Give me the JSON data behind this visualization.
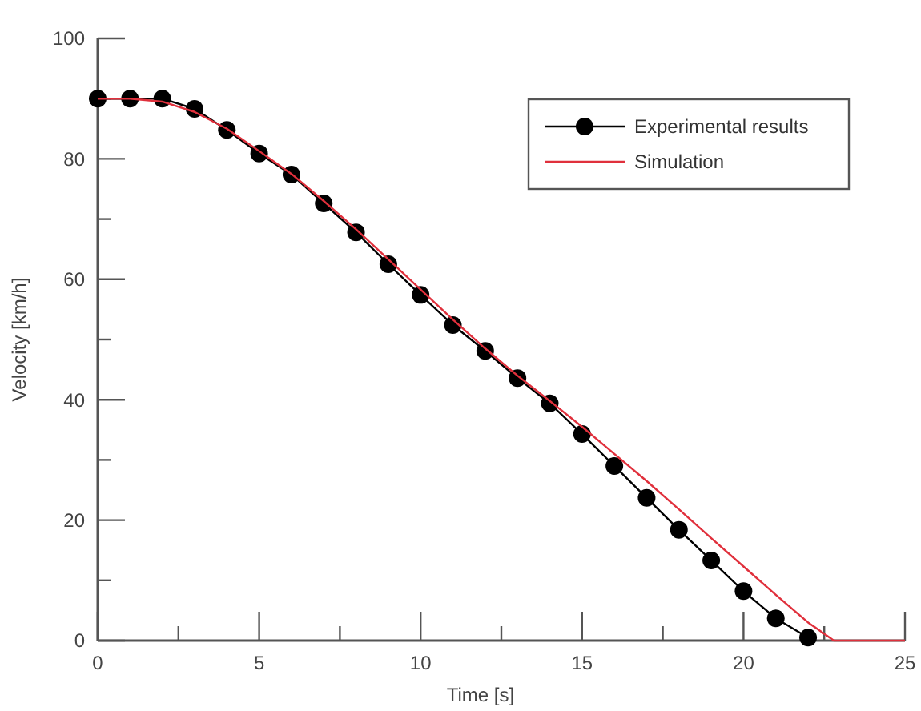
{
  "chart_data": {
    "type": "line",
    "xlabel": "Time [s]",
    "ylabel": "Velocity [km/h]",
    "xlim": [
      0,
      25
    ],
    "xticks": [
      0,
      {
        "value": 2.5,
        "label": null
      },
      5,
      {
        "value": 7.5,
        "label": null
      },
      10,
      {
        "value": 12.5,
        "label": null
      },
      15,
      {
        "value": 17.5,
        "label": null
      },
      20,
      {
        "value": 22.5,
        "label": null
      },
      25
    ],
    "ylim": [
      0,
      100
    ],
    "yticks": [
      0,
      {
        "value": 10,
        "label": null
      },
      20,
      {
        "value": 30,
        "label": null
      },
      40,
      {
        "value": 50,
        "label": null
      },
      60,
      {
        "value": 70,
        "label": null
      },
      80,
      {
        "value": 90,
        "label": null
      },
      100
    ],
    "grid": false,
    "legend": "top right",
    "series": [
      {
        "name": "Experimental results",
        "color": "#000000",
        "marker": "circle",
        "x": [
          0,
          1,
          2,
          3,
          4,
          5,
          6,
          7,
          8,
          9,
          10,
          11,
          12,
          13,
          14,
          15,
          16,
          17,
          18,
          19,
          20,
          21,
          22
        ],
        "values": [
          90,
          90,
          90,
          88.3,
          84.8,
          80.9,
          77.4,
          72.6,
          67.8,
          62.5,
          57.4,
          52.4,
          48.1,
          43.6,
          39.4,
          34.3,
          29,
          23.7,
          18.4,
          13.3,
          8.2,
          3.7,
          0.5
        ]
      },
      {
        "name": "Simulation",
        "color": "#e0303c",
        "marker": "none",
        "x": [
          0,
          1,
          2,
          3,
          4,
          5,
          6,
          7,
          8,
          9,
          10,
          11,
          12,
          13,
          14,
          15,
          16,
          17,
          18,
          19,
          20,
          21,
          22,
          22.8,
          25
        ],
        "values": [
          90,
          90,
          89.5,
          87.8,
          85,
          81.3,
          77.5,
          73,
          68.3,
          63.3,
          58.3,
          53.3,
          48.5,
          44,
          39.8,
          35.5,
          31,
          26.5,
          21.8,
          17,
          12.3,
          7.6,
          3,
          0,
          0
        ]
      }
    ]
  }
}
